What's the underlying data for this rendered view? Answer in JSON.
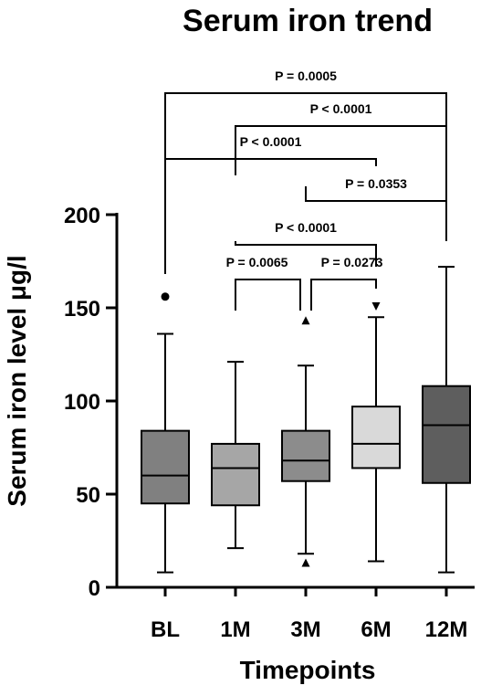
{
  "chart_data": {
    "type": "box",
    "title": "Serum iron trend",
    "xlabel": "Timepoints",
    "ylabel": "Serum iron level μg/l",
    "ylim": [
      0,
      200
    ],
    "yticks": [
      "0",
      "50",
      "100",
      "150",
      "200"
    ],
    "categories": [
      "BL",
      "1M",
      "3M",
      "6M",
      "12M"
    ],
    "boxes": [
      {
        "category": "BL",
        "min": 8,
        "q1": 45,
        "median": 60,
        "q3": 84,
        "max": 136,
        "outliers": [
          156
        ],
        "outlier_marker": "circle",
        "color": "#808080"
      },
      {
        "category": "1M",
        "min": 21,
        "q1": 44,
        "median": 64,
        "q3": 77,
        "max": 121,
        "outliers": [],
        "outlier_marker": "none",
        "color": "#a6a6a6"
      },
      {
        "category": "3M",
        "min": 18,
        "q1": 57,
        "median": 68,
        "q3": 84,
        "max": 119,
        "outliers": [
          143,
          13
        ],
        "outlier_marker": "triangle-up",
        "color": "#8c8c8c"
      },
      {
        "category": "6M",
        "min": 14,
        "q1": 64,
        "median": 77,
        "q3": 97,
        "max": 145,
        "outliers": [
          151
        ],
        "outlier_marker": "triangle-down",
        "color": "#d9d9d9"
      },
      {
        "category": "12M",
        "min": 8,
        "q1": 56,
        "median": 87,
        "q3": 108,
        "max": 172,
        "outliers": [],
        "outlier_marker": "none",
        "color": "#5e5e5e"
      }
    ],
    "comparisons": [
      {
        "from": "BL",
        "to": "12M",
        "label": "P = 0.0005"
      },
      {
        "from": "1M",
        "to": "12M",
        "label": "P < 0.0001"
      },
      {
        "from": "BL",
        "to": "6M",
        "label": "P < 0.0001"
      },
      {
        "from": "3M",
        "to": "12M",
        "label": "P = 0.0353"
      },
      {
        "from": "1M",
        "to": "6M",
        "label": "P < 0.0001"
      },
      {
        "from": "1M",
        "to": "3M",
        "label": "P = 0.0065"
      },
      {
        "from": "3M",
        "to": "6M",
        "label": "P = 0.0273"
      }
    ],
    "grid": false,
    "legend": "none"
  }
}
